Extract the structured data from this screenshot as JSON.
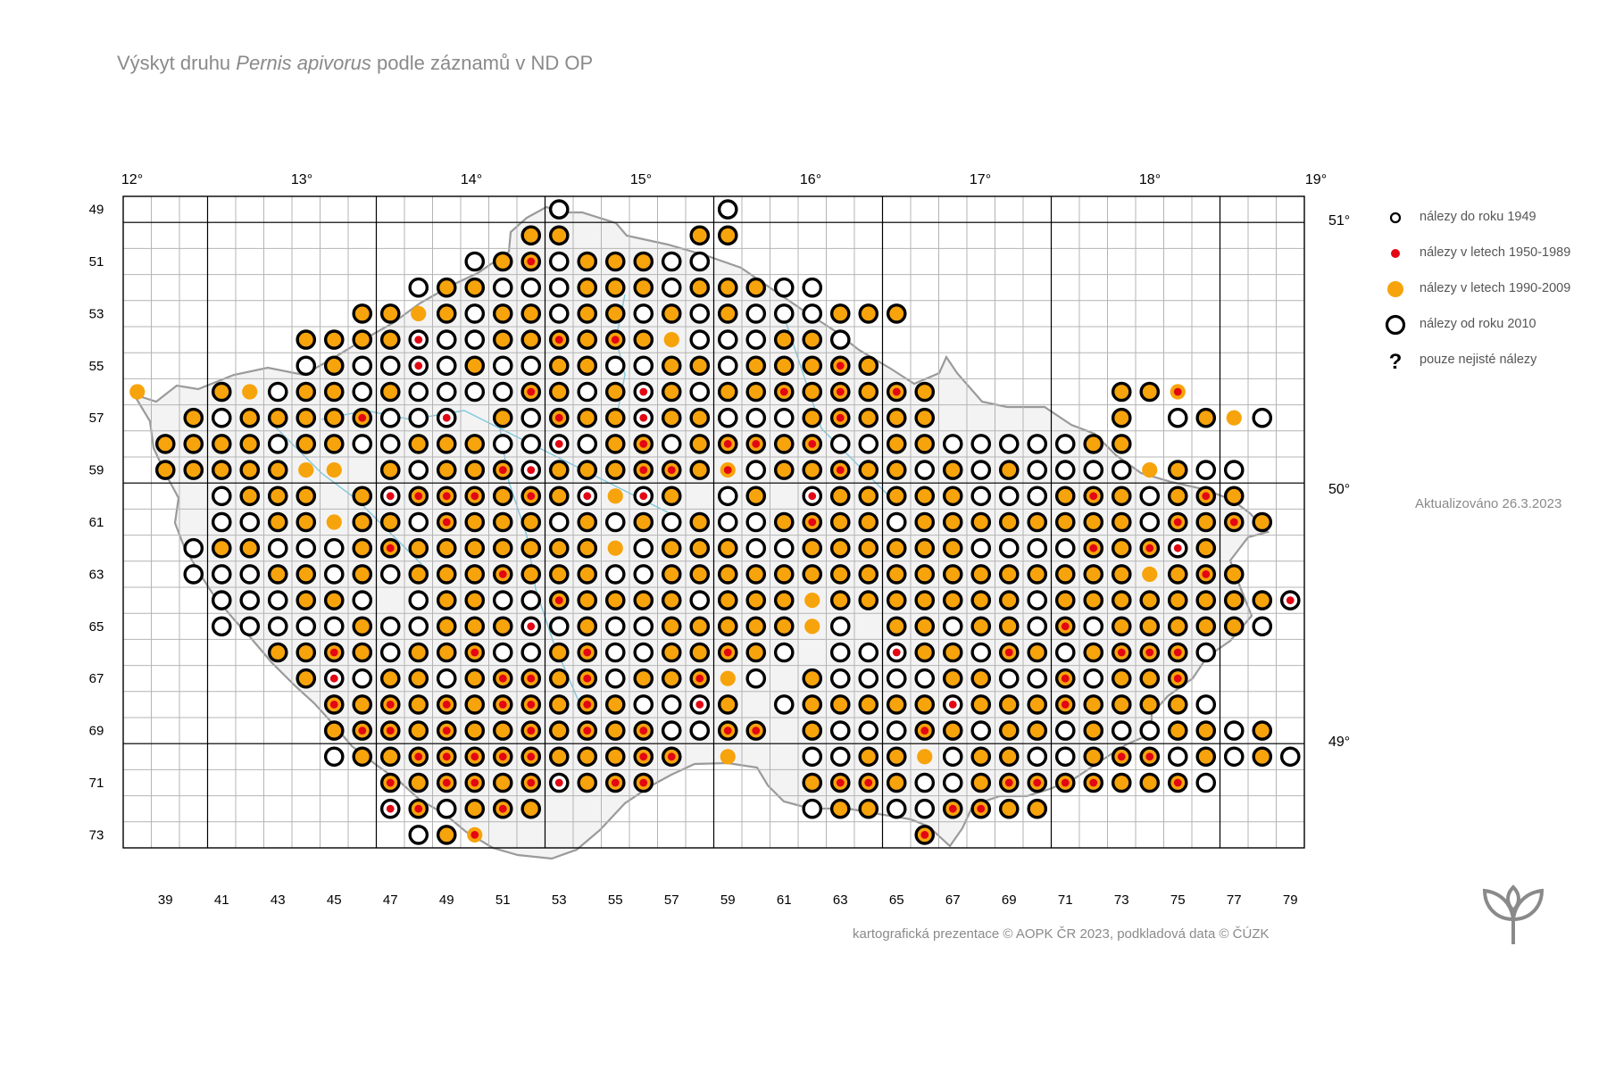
{
  "title": {
    "prefix": "Výskyt druhu ",
    "species": "Pernis apivorus",
    "suffix": " podle záznamů v ND OP"
  },
  "updated": "Aktualizováno 26.3.2023",
  "credit": "kartografická prezentace © AOPK ČR 2023, podkladová data © ČÚZK",
  "legend": [
    {
      "symbol": "ring-small",
      "label": "nálezy do roku 1949"
    },
    {
      "symbol": "red-dot",
      "label": "nálezy v letech 1950-1989"
    },
    {
      "symbol": "orange-dot",
      "label": "nálezy v letech 1990-2009"
    },
    {
      "symbol": "ring-large",
      "label": "nálezy od roku 2010"
    },
    {
      "symbol": "question",
      "label": "pouze nejisté nálezy"
    }
  ],
  "colors": {
    "orange": "#f7a30b",
    "red": "#e30613",
    "grid": "#b4b4b4",
    "border": "#9a9a9a",
    "river": "#7fc8dc",
    "text": "#8a8a8a"
  },
  "axes": {
    "longitude_top": [
      "12°",
      "13°",
      "14°",
      "15°",
      "16°",
      "17°",
      "18°",
      "19°"
    ],
    "latitude_right": [
      "51°",
      "50°",
      "49°"
    ],
    "row_labels": [
      "49",
      "51",
      "53",
      "55",
      "57",
      "59",
      "61",
      "63",
      "65",
      "67",
      "69",
      "71",
      "73"
    ],
    "col_labels": [
      "39",
      "41",
      "43",
      "45",
      "47",
      "49",
      "51",
      "53",
      "55",
      "57",
      "59",
      "61",
      "63",
      "65",
      "67",
      "69",
      "71",
      "73",
      "75",
      "77",
      "79"
    ]
  },
  "map_data": {
    "grid": {
      "col_start": 38,
      "col_end": 79,
      "row_start": 49,
      "row_end": 73
    },
    "symbol_codes": {
      "R": "ring (since 2010)",
      "O": "orange dot (1990-2009)",
      "D": "orange dot with ring",
      "X": "orange dot with ring and red dot",
      "W": "ring with red dot",
      "o": "orange dot only",
      "r": "red dot only",
      "y": "orange dot with red dot"
    },
    "rows": {
      "49": "...............R.....R..........................",
      "50": "..............DD....DD..........................",
      "51": "............RDXRDDDRR..........................",
      "52": "..........RDDRRRDDDRDDDRR.......................",
      "53": "........DDoDRDDRDDRDRDRRRDDD....................",
      "54": "......DDDDWRRDDXDXDoRRRDDR......................",
      "55": "......RDRRWRDRRDDRRDDRDDDXD.....................",
      "56": "o..DoRDDRDRRRRXDRDWDRDDXDXDXD......DDy..........",
      "57": "..DRDDDDXRRW.DRXDDWDDRRRDXDDD......D.RDoR.......",
      "58": ".DDDDRDDRRDDDRRWRDXRDXXDXRRDDRRRRRDD...........",
      "59": ".DDDDDoo.DRDDXWDDDXXDyRDDXDDRDRDRRRRoDRR........",
      "60": "...RDDD.DWXXXDXDWoWD.RD.WDDDDDRRRDXDRDXD........",
      "61": "...RRDDoDDRXDDDRDRDRDRRDXDDRDDDDDDDDRXDXD.r.....",
      "62": "..RDDRRRDXDDDDDDDoRDDDRRDDDDDDRRRRXDXWD.........",
      "63": "..RRRDDRDRDDDXDDDRRDDDDDDDDDDDDDDDDDoDXD.........",
      "64": "...RRRDDR.RDDRRXDDDDRDDDoDDDDDDDRDDDDDDDDWXo.....",
      "65": "...RRRRRDRRDDDWRDRRDDDDDoR.DDRDDRXRDDDDDR........",
      "66": ".....DDXDRDDXRRDXRRDDXDR.RRWDDRXDRDXXXR..........",
      "67": "......DWRDDRDXXDXRDDXoR.DRRRRDDRRXRDDX...........",
      "68": ".......XDXDXDXXDXDRRWD.RDDDDDWDDDXDDDDR..........",
      "69": ".......DXXDXDDXDXDXRRXX.DRRRXDRDDRDRRDDRD........",
      "70": ".......RDDXXXXXDDDXX.o..RRDDoRDDRRDXXRDRDR.......",
      "71": ".........XDXXDXWDXX.....DXXDRRDXXXXDDXR..........",
      "72": ".........WXRDXD.........RDDRRXXDD................",
      "73": "..........RDy...............X...................."
    }
  }
}
